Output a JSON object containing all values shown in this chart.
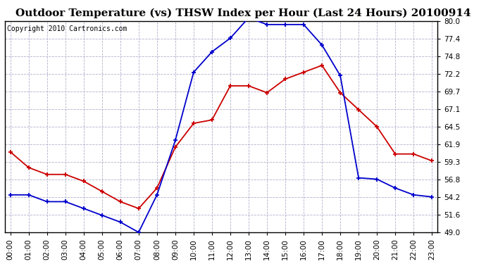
{
  "title": "Outdoor Temperature (vs) THSW Index per Hour (Last 24 Hours) 20100914",
  "copyright": "Copyright 2010 Cartronics.com",
  "hours": [
    "00:00",
    "01:00",
    "02:00",
    "03:00",
    "04:00",
    "05:00",
    "06:00",
    "07:00",
    "08:00",
    "09:00",
    "10:00",
    "11:00",
    "12:00",
    "13:00",
    "14:00",
    "15:00",
    "16:00",
    "17:00",
    "18:00",
    "19:00",
    "20:00",
    "21:00",
    "22:00",
    "23:00"
  ],
  "temp": [
    60.8,
    58.5,
    57.5,
    57.5,
    56.5,
    55.0,
    53.5,
    52.5,
    55.5,
    61.5,
    65.0,
    65.5,
    70.5,
    70.5,
    69.5,
    71.5,
    72.5,
    73.5,
    69.5,
    67.0,
    64.5,
    60.5,
    60.5,
    59.5
  ],
  "thsw": [
    54.5,
    54.5,
    53.5,
    53.5,
    52.5,
    51.5,
    50.5,
    49.0,
    54.5,
    62.5,
    72.5,
    75.5,
    77.5,
    80.5,
    79.5,
    79.5,
    79.5,
    76.5,
    72.0,
    57.0,
    56.8,
    55.5,
    54.5,
    54.2
  ],
  "temp_color": "#cc0000",
  "thsw_color": "#0000cc",
  "bg_color": "#ffffff",
  "grid_color": "#b0b0cc",
  "title_color": "#000000",
  "ymin": 49.0,
  "ymax": 80.0,
  "yticks": [
    49.0,
    51.6,
    54.2,
    56.8,
    59.3,
    61.9,
    64.5,
    67.1,
    69.7,
    72.2,
    74.8,
    77.4,
    80.0
  ],
  "title_fontsize": 11,
  "copyright_fontsize": 7,
  "tick_fontsize": 7.5
}
